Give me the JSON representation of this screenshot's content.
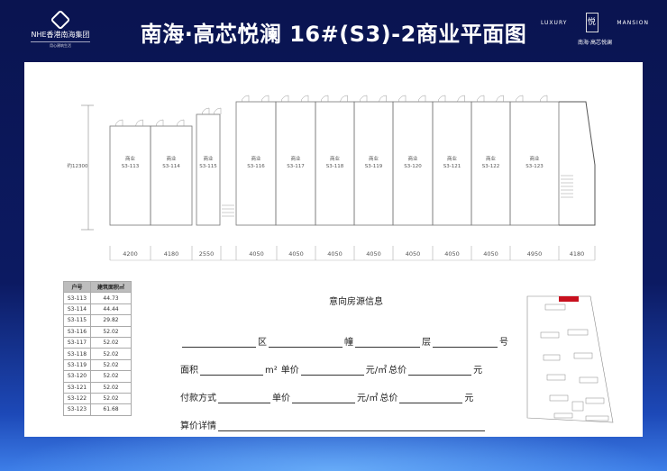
{
  "header": {
    "logo_text": "NHE香港南海集团",
    "logo_sub": "用心建筑生活",
    "title": "南海·高芯悦澜 16#(S3)-2商业平面图",
    "brand_left": "LUXURY",
    "brand_right": "MANSION",
    "brand_sub": "南海·高芯悦澜"
  },
  "plan": {
    "height_label": "约12300",
    "unit_type": "商业",
    "units": [
      "S3-113",
      "S3-114",
      "S3-115",
      "S3-116",
      "S3-117",
      "S3-118",
      "S3-119",
      "S3-120",
      "S3-121",
      "S3-122",
      "S3-123"
    ],
    "dimensions": [
      "4200",
      "4180",
      "2550",
      "",
      "4050",
      "4050",
      "4050",
      "4050",
      "4050",
      "4050",
      "4050",
      "4950",
      "4180"
    ]
  },
  "area_table": {
    "headers": [
      "户号",
      "建筑面积㎡"
    ],
    "rows": [
      [
        "S3-113",
        "44.73"
      ],
      [
        "S3-114",
        "44.44"
      ],
      [
        "S3-115",
        "29.82"
      ],
      [
        "S3-116",
        "52.02"
      ],
      [
        "S3-117",
        "52.02"
      ],
      [
        "S3-118",
        "52.02"
      ],
      [
        "S3-119",
        "52.02"
      ],
      [
        "S3-120",
        "52.02"
      ],
      [
        "S3-121",
        "52.02"
      ],
      [
        "S3-122",
        "52.02"
      ],
      [
        "S3-123",
        "61.68"
      ]
    ]
  },
  "form": {
    "title": "意向房源信息",
    "district": "区",
    "building": "幢",
    "floor": "层",
    "number": "号",
    "area": "面积",
    "sqm": "m²",
    "unit_price": "单价",
    "yuan_sqm": "元/㎡",
    "total": "总价",
    "yuan": "元",
    "payment": "付款方式",
    "detail": "算价详情"
  },
  "colors": {
    "background": "#0c1a62",
    "highlight": "#c8101e"
  }
}
